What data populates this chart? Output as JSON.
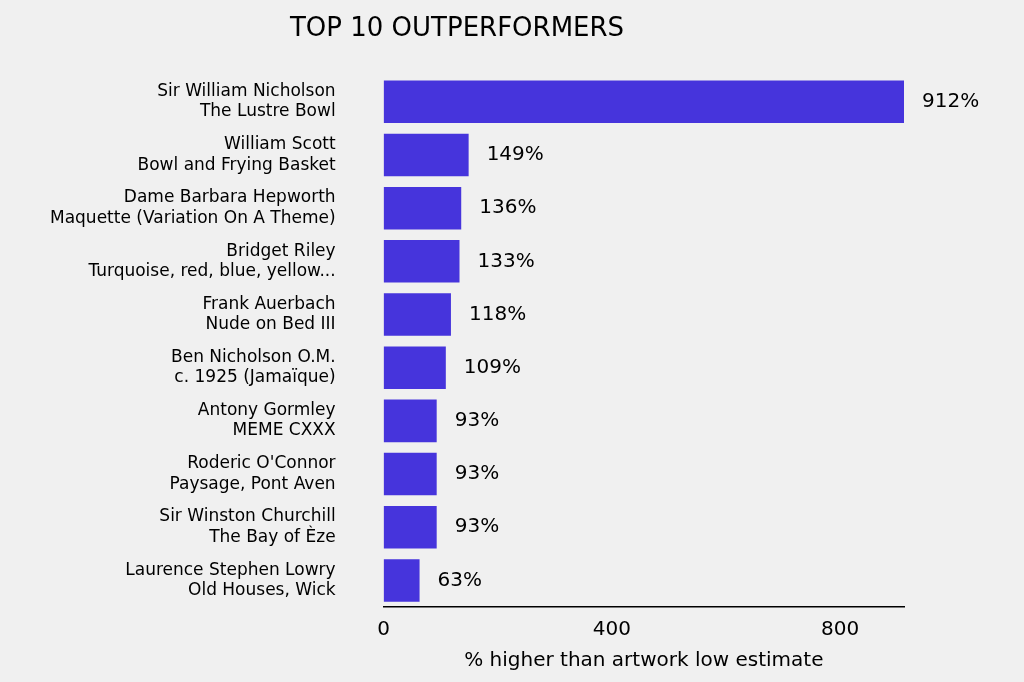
{
  "chart_data": {
    "type": "bar",
    "orientation": "horizontal",
    "title": "TOP 10 OUTPERFORMERS",
    "xlabel": "% higher than artwork low estimate",
    "categories": [
      "Sir William Nicholson\nThe Lustre Bowl",
      "William Scott\nBowl and Frying Basket",
      "Dame Barbara Hepworth\nMaquette (Variation On A Theme)",
      "Bridget Riley\nTurquoise, red, blue, yellow...",
      "Frank Auerbach\nNude on Bed III",
      "Ben Nicholson O.M.\nc. 1925 (Jamaïque)",
      "Antony Gormley\nMEME CXXX",
      "Roderic O'Connor\nPaysage, Pont Aven",
      "Sir Winston Churchill\nThe Bay of Èze",
      "Laurence Stephen Lowry\nOld Houses, Wick"
    ],
    "values": [
      912,
      149,
      136,
      133,
      118,
      109,
      93,
      93,
      93,
      63
    ],
    "value_labels": [
      "912%",
      "149%",
      "136%",
      "133%",
      "118%",
      "109%",
      "93%",
      "93%",
      "93%",
      "63%"
    ],
    "color": "#4634dc",
    "xlim": [
      0,
      912
    ],
    "xticks": [
      0,
      400,
      800
    ],
    "grid": false,
    "legend": false
  }
}
